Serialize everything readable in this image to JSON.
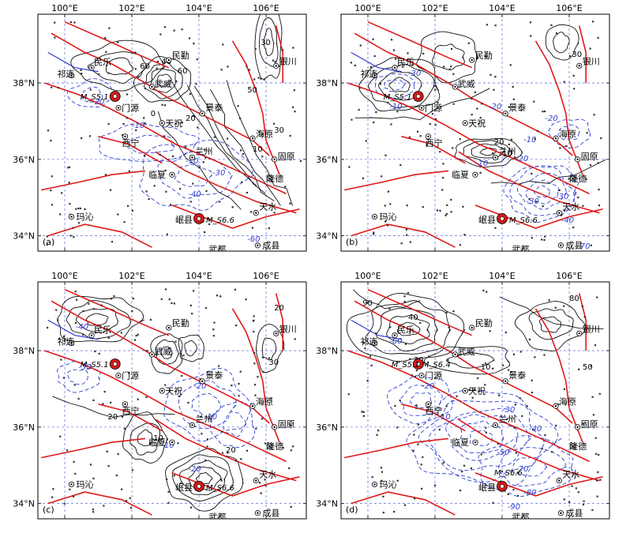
{
  "figure": {
    "lon_ticks": [
      "100°E",
      "102°E",
      "104°E",
      "106°E"
    ],
    "lat_ticks": [
      "38°N",
      "36°N",
      "34°N"
    ],
    "panel_labels": [
      "(a)",
      "(b)",
      "(c)",
      "(d)"
    ],
    "cities": {
      "minqin": "民勤",
      "yinchuan": "银川",
      "qilian": "祁连",
      "minle": "民乐",
      "wuwei": "武威",
      "menyuan": "门源",
      "jingtai": "景泰",
      "tianzhu": "天祝",
      "xining": "西宁",
      "haiyuan": "海原",
      "lanzhou": "兰州",
      "guyuan": "固原",
      "linxia": "临夏",
      "longde": "隆德",
      "tianshui": "天水",
      "maqin": "玛沁",
      "minxian": "岷县",
      "chengxian": "成县",
      "wudu": "武都"
    },
    "earthquakes": {
      "menyuan_a": "M_S5.1",
      "menyuan_d": "M_S5.1 M_S6.4",
      "minxian": "M_S6.6"
    },
    "contour_labels": {
      "a": [
        "30",
        "50",
        "60",
        "40",
        "60",
        "20",
        "0",
        "-10",
        "-20",
        "30",
        "10",
        "-10",
        "-30",
        "-40",
        "-60"
      ],
      "b": [
        "-30",
        "30",
        "-10",
        "20",
        "-10",
        "-20",
        "-30",
        "-30",
        "-20",
        "-10",
        "-20",
        "-40",
        "-70",
        "10"
      ],
      "c": [
        "-40",
        "20",
        "-30",
        "30",
        "-20",
        "-10",
        "20",
        "-10",
        "10",
        "-20",
        "20"
      ],
      "d": [
        "90",
        "-60",
        "50",
        "-20",
        "30",
        "10",
        "80",
        "40",
        "-30",
        "-40",
        "-10",
        "-50",
        "-70",
        "-80",
        "-90"
      ]
    },
    "colors": {
      "fault": "#e01818",
      "positive_contour": "#111111",
      "negative_contour": "#2f3fd0",
      "grid": "#3a4fd6",
      "earthquake": "#d61a1a"
    }
  }
}
